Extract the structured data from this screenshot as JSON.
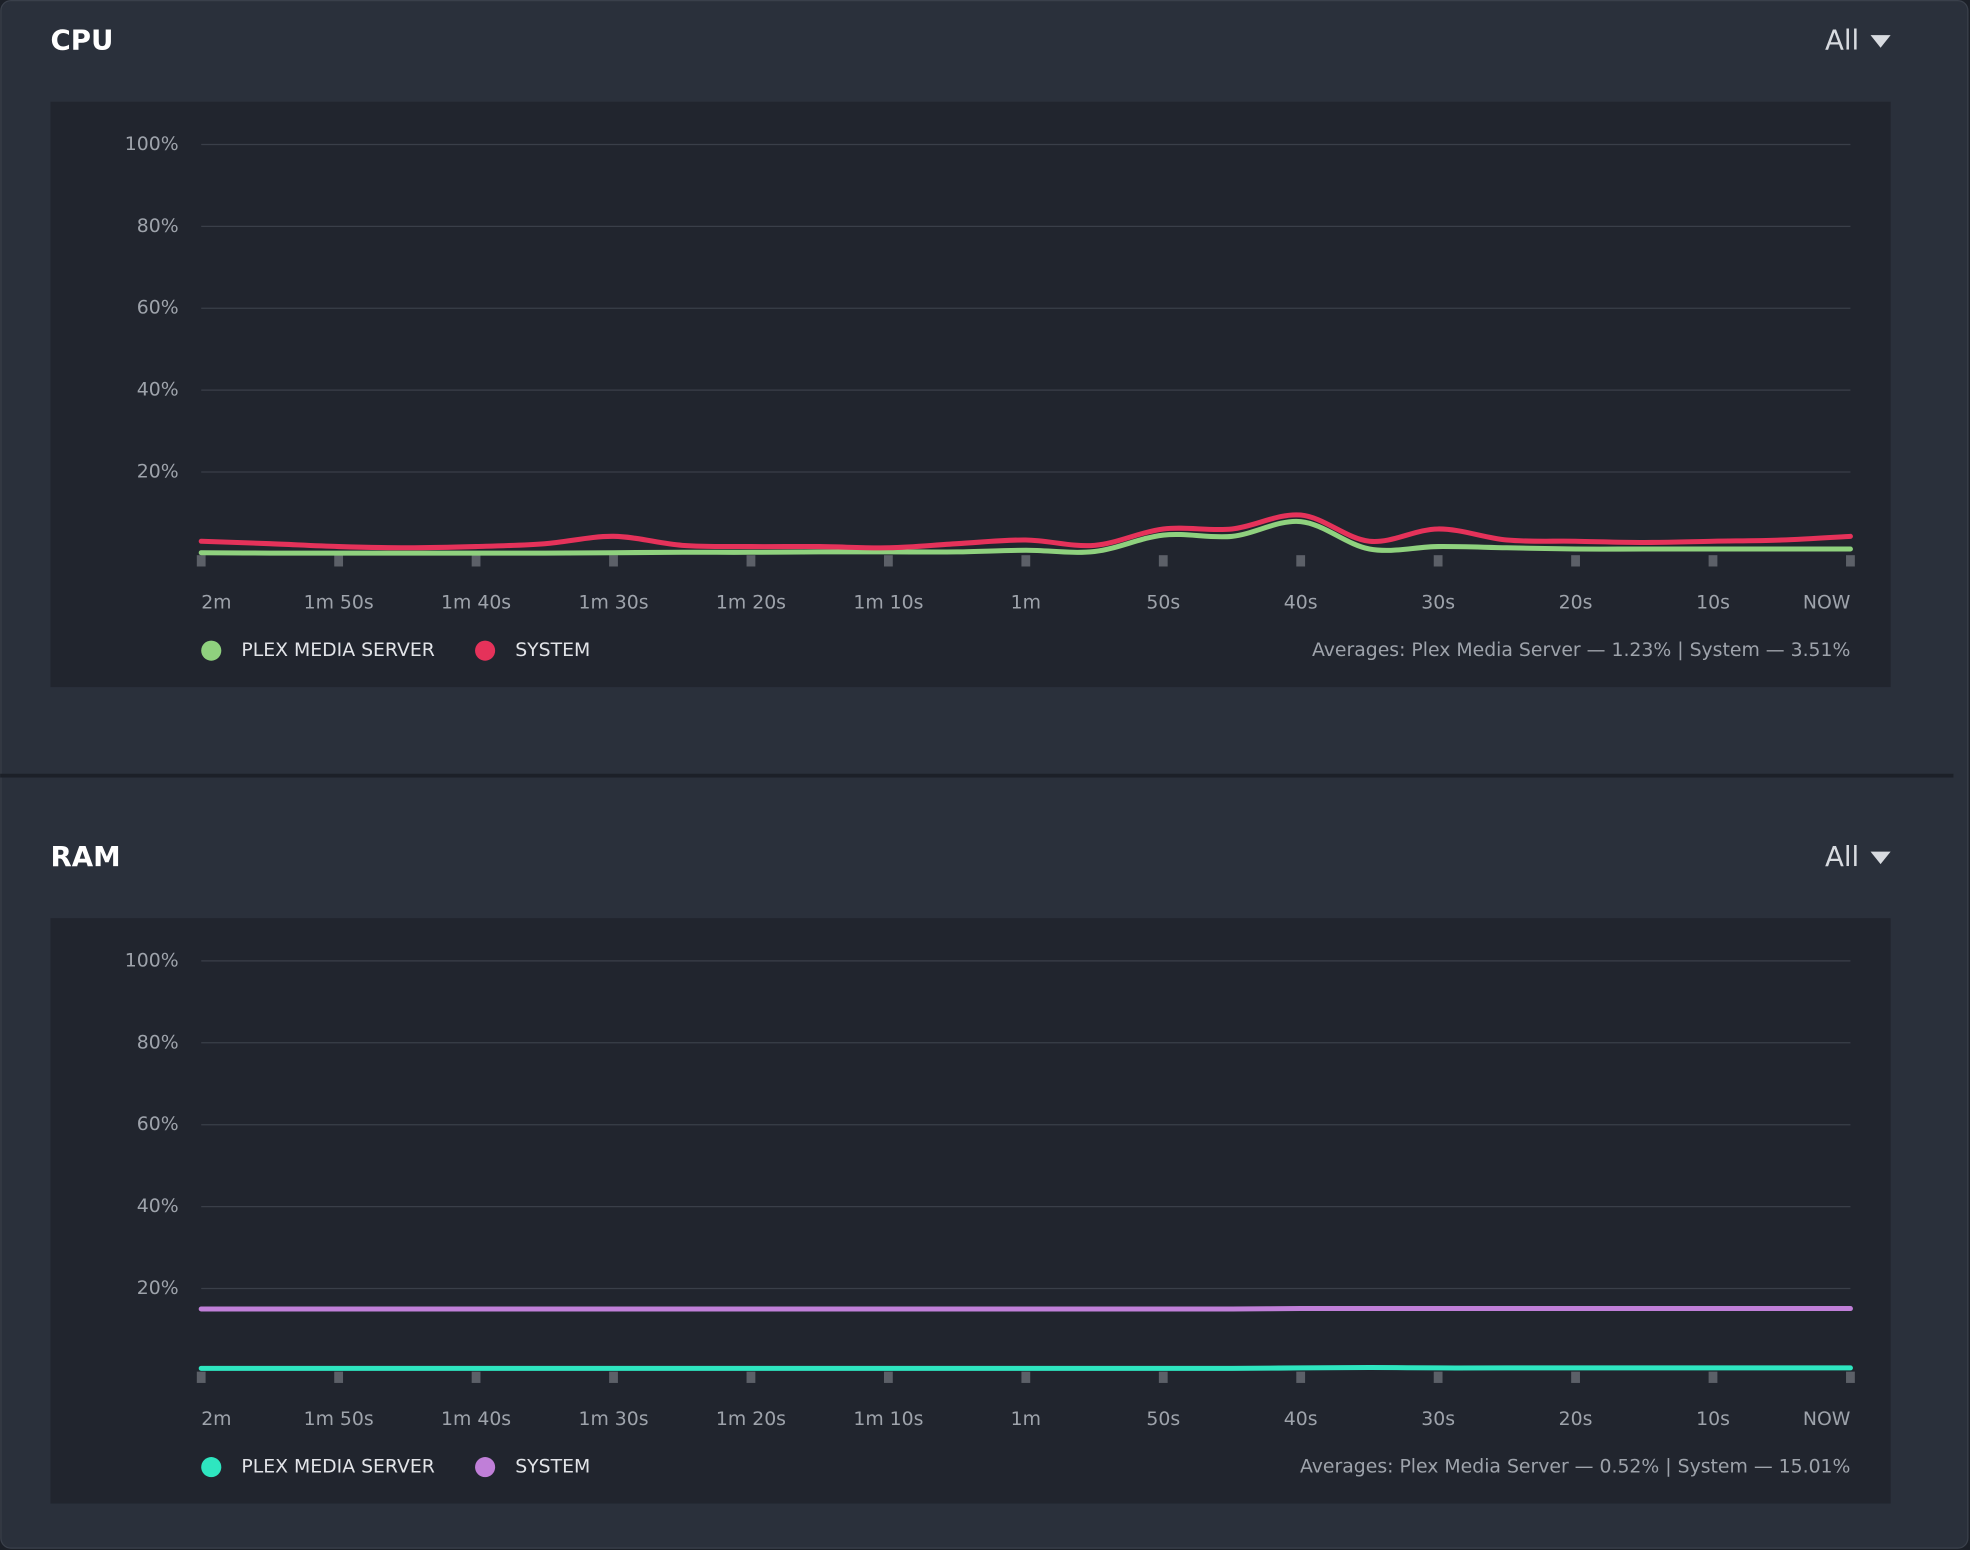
{
  "chart_data": [
    {
      "type": "line",
      "title": "CPU",
      "dropdown": "All",
      "categories": [
        "2m",
        null,
        "1m 50s",
        null,
        "1m 40s",
        null,
        "1m 30s",
        null,
        "1m 20s",
        null,
        "1m 10s",
        null,
        "1m",
        null,
        "50s",
        null,
        "40s",
        null,
        "30s",
        null,
        "20s",
        null,
        "10s",
        null,
        "NOW"
      ],
      "ylim": [
        0,
        100
      ],
      "yticks": [
        {
          "value": 20,
          "label": "20%"
        },
        {
          "value": 40,
          "label": "40%"
        },
        {
          "value": 60,
          "label": "60%"
        },
        {
          "value": 80,
          "label": "80%"
        },
        {
          "value": 100,
          "label": "100%"
        }
      ],
      "grid": true,
      "series": [
        {
          "name": "PLEX MEDIA SERVER",
          "color": "#8fd17e",
          "values": [
            0.3,
            0.2,
            0.2,
            0.2,
            0.2,
            0.2,
            0.3,
            0.4,
            0.4,
            0.5,
            0.5,
            0.5,
            0.9,
            0.6,
            4.6,
            4.3,
            7.9,
            1.2,
            1.8,
            1.5,
            1.2,
            1.2,
            1.2,
            1.2,
            1.2
          ]
        },
        {
          "name": "SYSTEM",
          "color": "#e5325a",
          "values": [
            3.1,
            2.5,
            1.8,
            1.5,
            1.8,
            2.5,
            4.3,
            2.1,
            1.8,
            1.8,
            1.5,
            2.5,
            3.4,
            2.1,
            6.1,
            6.1,
            9.5,
            3.1,
            6.1,
            3.4,
            3.1,
            2.8,
            3.1,
            3.4,
            4.3
          ]
        }
      ],
      "averages": "Averages: Plex Media Server — 1.23% | System — 3.51%"
    },
    {
      "type": "line",
      "title": "RAM",
      "dropdown": "All",
      "categories": [
        "2m",
        null,
        "1m 50s",
        null,
        "1m 40s",
        null,
        "1m 30s",
        null,
        "1m 20s",
        null,
        "1m 10s",
        null,
        "1m",
        null,
        "50s",
        null,
        "40s",
        null,
        "30s",
        null,
        "20s",
        null,
        "10s",
        null,
        "NOW"
      ],
      "ylim": [
        0,
        100
      ],
      "yticks": [
        {
          "value": 20,
          "label": "20%"
        },
        {
          "value": 40,
          "label": "40%"
        },
        {
          "value": 60,
          "label": "60%"
        },
        {
          "value": 80,
          "label": "80%"
        },
        {
          "value": 100,
          "label": "100%"
        }
      ],
      "grid": true,
      "series": [
        {
          "name": "PLEX MEDIA SERVER",
          "color": "#2ee6c0",
          "values": [
            0.5,
            0.5,
            0.5,
            0.5,
            0.5,
            0.5,
            0.5,
            0.5,
            0.5,
            0.5,
            0.5,
            0.5,
            0.5,
            0.5,
            0.5,
            0.5,
            0.6,
            0.7,
            0.6,
            0.6,
            0.6,
            0.6,
            0.6,
            0.6,
            0.6
          ]
        },
        {
          "name": "SYSTEM",
          "color": "#c07fd8",
          "values": [
            15.0,
            15.0,
            15.0,
            15.0,
            15.0,
            15.0,
            15.0,
            15.0,
            15.0,
            15.0,
            15.0,
            15.0,
            15.0,
            15.0,
            15.0,
            15.0,
            15.1,
            15.1,
            15.1,
            15.1,
            15.1,
            15.1,
            15.1,
            15.1,
            15.1
          ]
        }
      ],
      "averages": "Averages: Plex Media Server — 0.52% | System — 15.01%"
    }
  ]
}
